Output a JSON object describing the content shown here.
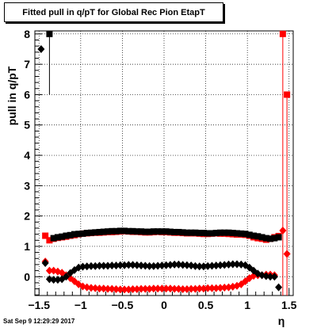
{
  "title": "Fitted pull in q/pT for Global Rec Pion EtapT",
  "footer": "Sat Sep  9 12:29:29 2017",
  "chart_data": {
    "type": "scatter",
    "title": "Fitted pull in q/pT for Global Rec Pion EtapT",
    "xlabel": "η",
    "ylabel": "pull in q/pT",
    "xlim": [
      -1.55,
      1.55
    ],
    "ylim": [
      -0.62,
      8.1
    ],
    "xticks": [
      -1.5,
      -1,
      -0.5,
      0,
      0.5,
      1,
      1.5
    ],
    "xtick_labels": [
      "−1.5",
      "−1",
      "−0.5",
      "0",
      "0.5",
      "1",
      "1.5"
    ],
    "yticks": [
      0,
      1,
      2,
      3,
      4,
      5,
      6,
      7,
      8
    ],
    "ytick_labels": [
      "0",
      "1",
      "2",
      "3",
      "4",
      "5",
      "6",
      "7",
      "8"
    ],
    "grid": true,
    "series": [
      {
        "color": "#ff0000",
        "marker": "square",
        "x": [
          -1.425,
          -1.375,
          -1.325,
          -1.275,
          -1.225,
          -1.175,
          -1.125,
          -1.075,
          -1.025,
          -0.975,
          -0.925,
          -0.875,
          -0.825,
          -0.775,
          -0.725,
          -0.675,
          -0.625,
          -0.575,
          -0.525,
          -0.475,
          -0.425,
          -0.375,
          -0.325,
          -0.275,
          -0.225,
          -0.175,
          -0.125,
          -0.075,
          -0.025,
          0.025,
          0.075,
          0.125,
          0.175,
          0.225,
          0.275,
          0.325,
          0.375,
          0.425,
          0.475,
          0.525,
          0.575,
          0.625,
          0.675,
          0.725,
          0.775,
          0.825,
          0.875,
          0.925,
          0.975,
          1.025,
          1.075,
          1.125,
          1.175,
          1.225,
          1.275,
          1.325,
          1.375,
          1.425,
          1.475
        ],
        "y": [
          1.35,
          1.2,
          1.25,
          1.28,
          1.3,
          1.32,
          1.35,
          1.37,
          1.4,
          1.42,
          1.43,
          1.44,
          1.45,
          1.45,
          1.46,
          1.47,
          1.47,
          1.48,
          1.49,
          1.5,
          1.49,
          1.48,
          1.48,
          1.47,
          1.46,
          1.46,
          1.47,
          1.48,
          1.47,
          1.47,
          1.46,
          1.45,
          1.45,
          1.44,
          1.43,
          1.43,
          1.43,
          1.42,
          1.41,
          1.41,
          1.42,
          1.43,
          1.42,
          1.42,
          1.41,
          1.4,
          1.39,
          1.39,
          1.38,
          1.35,
          1.3,
          1.27,
          1.25,
          1.22,
          1.25,
          1.3,
          1.34,
          8.0,
          6.0
        ]
      },
      {
        "color": "#000000",
        "marker": "square",
        "x": [
          -1.375,
          -1.325,
          -1.275,
          -1.225,
          -1.175,
          -1.125,
          -1.075,
          -1.025,
          -0.975,
          -0.925,
          -0.875,
          -0.825,
          -0.775,
          -0.725,
          -0.675,
          -0.625,
          -0.575,
          -0.525,
          -0.475,
          -0.425,
          -0.375,
          -0.325,
          -0.275,
          -0.225,
          -0.175,
          -0.125,
          -0.075,
          -0.025,
          0.025,
          0.075,
          0.125,
          0.175,
          0.225,
          0.275,
          0.325,
          0.375,
          0.425,
          0.475,
          0.525,
          0.575,
          0.625,
          0.675,
          0.725,
          0.775,
          0.825,
          0.875,
          0.925,
          0.975,
          1.025,
          1.075,
          1.125,
          1.175,
          1.225,
          1.275,
          1.325,
          1.375
        ],
        "y": [
          8.0,
          1.27,
          1.3,
          1.32,
          1.35,
          1.37,
          1.4,
          1.41,
          1.42,
          1.44,
          1.45,
          1.46,
          1.47,
          1.48,
          1.49,
          1.5,
          1.5,
          1.51,
          1.51,
          1.5,
          1.5,
          1.49,
          1.49,
          1.48,
          1.48,
          1.49,
          1.49,
          1.49,
          1.49,
          1.48,
          1.47,
          1.47,
          1.46,
          1.45,
          1.45,
          1.45,
          1.44,
          1.44,
          1.43,
          1.43,
          1.44,
          1.45,
          1.45,
          1.45,
          1.44,
          1.43,
          1.42,
          1.41,
          1.38,
          1.35,
          1.33,
          1.3,
          1.27,
          1.25,
          1.27,
          1.3
        ]
      },
      {
        "color": "#ff0000",
        "marker": "diamond",
        "x": [
          -1.425,
          -1.375,
          -1.325,
          -1.275,
          -1.225,
          -1.175,
          -1.125,
          -1.075,
          -1.025,
          -0.975,
          -0.925,
          -0.875,
          -0.825,
          -0.775,
          -0.725,
          -0.675,
          -0.625,
          -0.575,
          -0.525,
          -0.475,
          -0.425,
          -0.375,
          -0.325,
          -0.275,
          -0.225,
          -0.175,
          -0.125,
          -0.075,
          -0.025,
          0.025,
          0.075,
          0.125,
          0.175,
          0.225,
          0.275,
          0.325,
          0.375,
          0.425,
          0.475,
          0.525,
          0.575,
          0.625,
          0.675,
          0.725,
          0.775,
          0.825,
          0.875,
          0.925,
          0.975,
          1.025,
          1.075,
          1.125,
          1.175,
          1.225,
          1.275,
          1.325,
          1.425,
          1.475
        ],
        "y": [
          0.5,
          0.2,
          0.2,
          0.17,
          0.13,
          0.05,
          -0.05,
          -0.15,
          -0.25,
          -0.32,
          -0.35,
          -0.37,
          -0.38,
          -0.39,
          -0.39,
          -0.4,
          -0.4,
          -0.41,
          -0.42,
          -0.42,
          -0.42,
          -0.41,
          -0.41,
          -0.4,
          -0.4,
          -0.4,
          -0.39,
          -0.39,
          -0.39,
          -0.39,
          -0.39,
          -0.4,
          -0.4,
          -0.41,
          -0.41,
          -0.4,
          -0.4,
          -0.39,
          -0.39,
          -0.38,
          -0.38,
          -0.38,
          -0.37,
          -0.36,
          -0.35,
          -0.33,
          -0.3,
          -0.25,
          -0.15,
          -0.05,
          0.03,
          0.05,
          0.05,
          0.07,
          0.07,
          0.05,
          1.52,
          0.75
        ]
      },
      {
        "color": "#000000",
        "marker": "diamond",
        "x": [
          -1.475,
          -1.425,
          -1.375,
          -1.325,
          -1.275,
          -1.225,
          -1.175,
          -1.125,
          -1.075,
          -1.025,
          -0.975,
          -0.925,
          -0.875,
          -0.825,
          -0.775,
          -0.725,
          -0.675,
          -0.625,
          -0.575,
          -0.525,
          -0.475,
          -0.425,
          -0.375,
          -0.325,
          -0.275,
          -0.225,
          -0.175,
          -0.125,
          -0.075,
          -0.025,
          0.025,
          0.075,
          0.125,
          0.175,
          0.225,
          0.275,
          0.325,
          0.375,
          0.425,
          0.475,
          0.525,
          0.575,
          0.625,
          0.675,
          0.725,
          0.775,
          0.825,
          0.875,
          0.925,
          0.975,
          1.025,
          1.075,
          1.125,
          1.175,
          1.225,
          1.275,
          1.325,
          1.375
        ],
        "y": [
          7.5,
          0.45,
          -0.08,
          -0.1,
          -0.1,
          -0.08,
          0.0,
          0.12,
          0.22,
          0.3,
          0.33,
          0.34,
          0.35,
          0.35,
          0.36,
          0.36,
          0.36,
          0.37,
          0.37,
          0.38,
          0.38,
          0.39,
          0.39,
          0.38,
          0.37,
          0.36,
          0.35,
          0.35,
          0.36,
          0.37,
          0.38,
          0.39,
          0.4,
          0.4,
          0.39,
          0.38,
          0.37,
          0.35,
          0.34,
          0.34,
          0.35,
          0.36,
          0.37,
          0.38,
          0.39,
          0.4,
          0.41,
          0.41,
          0.4,
          0.38,
          0.3,
          0.2,
          0.1,
          0.05,
          0.02,
          0.0,
          0.0,
          -0.35
        ]
      }
    ]
  }
}
